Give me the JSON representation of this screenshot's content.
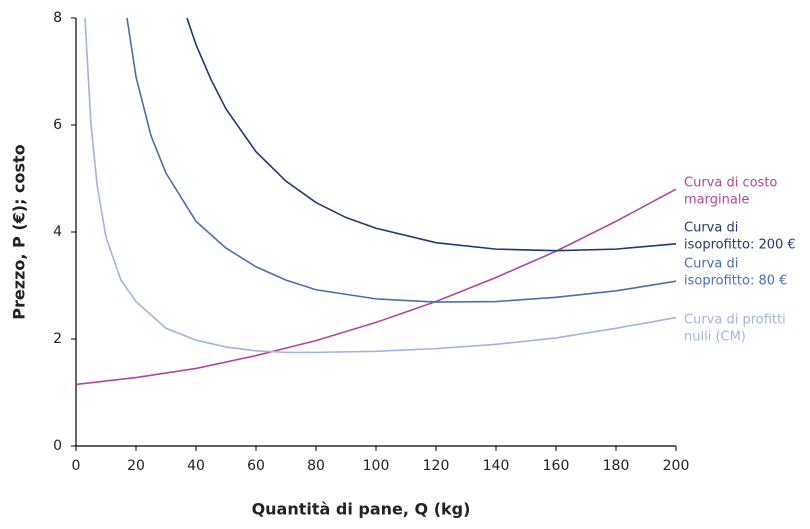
{
  "chart_data": {
    "type": "line",
    "xlabel": "Quantità di pane, Q (kg)",
    "ylabel": "Prezzo, P (€); costo",
    "xlim": [
      0,
      200
    ],
    "xticks": [
      0,
      20,
      40,
      60,
      80,
      100,
      120,
      140,
      160,
      180,
      200
    ],
    "ylim": [
      0,
      8
    ],
    "yticks": [
      0,
      2,
      4,
      6,
      8
    ],
    "grid": false,
    "series": [
      {
        "name": [
          "Curva di costo",
          "marginale"
        ],
        "color": "#b0479c",
        "x": [
          0,
          20,
          40,
          60,
          80,
          100,
          120,
          140,
          160,
          180,
          200
        ],
        "values": [
          1.15,
          1.28,
          1.45,
          1.69,
          1.97,
          2.31,
          2.7,
          3.15,
          3.64,
          4.2,
          4.8
        ]
      },
      {
        "name": [
          "Curva di",
          "isoprofitto: 200 €"
        ],
        "color": "#1f3a6e",
        "x": [
          37,
          40,
          45,
          50,
          60,
          70,
          80,
          90,
          100,
          120,
          140,
          160,
          180,
          200
        ],
        "values": [
          8,
          7.5,
          6.85,
          6.3,
          5.5,
          4.95,
          4.55,
          4.27,
          4.07,
          3.8,
          3.68,
          3.65,
          3.68,
          3.78
        ]
      },
      {
        "name": [
          "Curva di",
          "isoprofitto: 80 €"
        ],
        "color": "#4a6fb0",
        "x": [
          17,
          20,
          25,
          30,
          40,
          50,
          60,
          70,
          80,
          100,
          120,
          140,
          160,
          180,
          200
        ],
        "values": [
          8,
          6.9,
          5.8,
          5.1,
          4.2,
          3.7,
          3.35,
          3.1,
          2.92,
          2.75,
          2.69,
          2.7,
          2.78,
          2.9,
          3.08
        ]
      },
      {
        "name": [
          "Curva di profitti",
          "nulli (CM)"
        ],
        "color": "#9fb5dd",
        "x": [
          3,
          5,
          7,
          10,
          15,
          20,
          30,
          40,
          50,
          60,
          70,
          80,
          100,
          120,
          140,
          160,
          180,
          200
        ],
        "values": [
          8,
          6.0,
          4.9,
          3.9,
          3.1,
          2.7,
          2.2,
          1.98,
          1.85,
          1.78,
          1.75,
          1.75,
          1.77,
          1.82,
          1.9,
          2.02,
          2.2,
          2.4
        ]
      }
    ]
  }
}
